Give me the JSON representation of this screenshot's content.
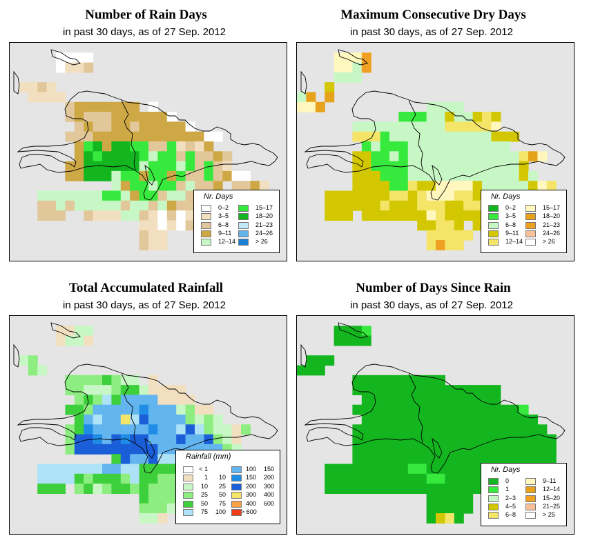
{
  "subtitle_parts": [
    "in past 30 days, as of",
    "27 Sep. 2012"
  ],
  "panels": [
    {
      "title": "Number of Rain Days",
      "legend": {
        "title": "Nr. Days",
        "items": [
          {
            "label": "0–2",
            "color": "#ffffff"
          },
          {
            "label": "3–5",
            "color": "#f2dfbf"
          },
          {
            "label": "6–8",
            "color": "#e2c79b"
          },
          {
            "label": "9–11",
            "color": "#cda845"
          },
          {
            "label": "12–14",
            "color": "#c8f7c6"
          },
          {
            "label": "15–17",
            "color": "#37e93d"
          },
          {
            "label": "18–20",
            "color": "#14b620"
          },
          {
            "label": "21–23",
            "color": "#c2e9f7"
          },
          {
            "label": "24–26",
            "color": "#62b3ea"
          },
          {
            "label": "> 26",
            "color": "#1a7fd2"
          }
        ]
      },
      "grid": [
        "..............................",
        ".....0000.....................",
        ".....0112.....................",
        "..............................",
        ".1121.........................",
        "..1111........................",
        "......23333333.0..............",
        "......232223333330............",
        ".......2322332333330..........",
        "......22233333333333300.......",
        ".......3LM3MMLL22L1213........",
        ".......3MLMMMML4LL2L2232......",
        "......33MMMMMM4LLL4L2L21.......",
        "......33MMM4LL3LL3L22L2300....",
        "...........43LL4LL24223.2231..",
        "...4444444LL43LL244222333222..",
        "...224244444244243222221..1...",
        "...222..2111442102011.........",
        "..............110102..........",
        "..............211.............",
        "..............211.............",
        ".............................."
      ]
    },
    {
      "title": "Maximum Consecutive Dry Days",
      "legend": {
        "title": "Nr. Days",
        "items": [
          {
            "label": "0–2",
            "color": "#14b620"
          },
          {
            "label": "3–5",
            "color": "#37e93d"
          },
          {
            "label": "6–8",
            "color": "#c8f7c6"
          },
          {
            "label": "9–11",
            "color": "#d2c700"
          },
          {
            "label": "12–14",
            "color": "#f4e569"
          },
          {
            "label": "15–17",
            "color": "#fff7bd"
          },
          {
            "label": "18–20",
            "color": "#e6a21a"
          },
          {
            "label": "21–23",
            "color": "#f0a022"
          },
          {
            "label": "24–26",
            "color": "#f7c09a"
          },
          {
            "label": "> 26",
            "color": "#ffffff"
          }
        ]
      },
      "grid": [
        "..............................",
        "....5557......................",
        "....5527......................",
        "....222.......................",
        "...3..........................",
        "26.6..........................",
        "556...........2222............",
        "...........11122322343........",
        "......2222222222444445........",
        "......444122222222222333......",
        ".......1211122222222222.......",
        "......331121222222222222465...",
        "......3311112222222222223.....",
        "......33311122222222222232....",
        "......3333114335555322222354..",
        "...33333334434555443343333.7..",
        "...3333334333444334443333377..",
        "...333.3333333543333334.......",
        ".............33443.3.........",
        "..............44444...........",
        "..............4744............",
        ".............................."
      ]
    },
    {
      "title": "Total Accumulated Rainfall",
      "legend": {
        "title": "Rainfall (mm)",
        "items": [
          {
            "lo": "< 1",
            "hi": "",
            "color": "#ffffff"
          },
          {
            "lo": "1",
            "hi": "10",
            "color": "#f2dfbf"
          },
          {
            "lo": "10",
            "hi": "25",
            "color": "#c8f7c6"
          },
          {
            "lo": "25",
            "hi": "50",
            "color": "#8ded80"
          },
          {
            "lo": "50",
            "hi": "75",
            "color": "#3ecf3d"
          },
          {
            "lo": "75",
            "hi": "100",
            "color": "#aee2f7"
          },
          {
            "lo": "100",
            "hi": "150",
            "color": "#63b5ef"
          },
          {
            "lo": "150",
            "hi": "200",
            "color": "#1f8de6"
          },
          {
            "lo": "200",
            "hi": "300",
            "color": "#1a5fd8"
          },
          {
            "lo": "300",
            "hi": "400",
            "color": "#f4e569"
          },
          {
            "lo": "400",
            "hi": "600",
            "color": "#f7a046"
          },
          {
            "lo": "> 600",
            "hi": "",
            "color": "#f03d19"
          }
        ]
      },
      "grid": [
        "..............................",
        ".....1122.....................",
        ".....1221.....................",
        "..............................",
        ".23...........................",
        "..32..........................",
        "......33334322.1..............",
        "......3322234421111...........",
        ".......3435466661111..........",
        "......4436666676662311........",
        ".......4656695866663232.......",
        "......34766666676658532213....",
        "......3887687886668668321....",
        "......3888888888666666632.....",
        "...........48668552443243.....",
        "...55555556655444433333232.1..",
        "...555543444354433344333333...",
        "...444.3423443433333.........",
        "..............4333332.........",
        "..............3332............",
        "..............221.............",
        ".............................."
      ]
    },
    {
      "title": "Number of Days Since Rain",
      "legend": {
        "title": "Nr. Days",
        "items": [
          {
            "label": "0",
            "color": "#14b620"
          },
          {
            "label": "1",
            "color": "#37e93d"
          },
          {
            "label": "2–3",
            "color": "#c8f7c6"
          },
          {
            "label": "4–5",
            "color": "#d2c700"
          },
          {
            "label": "6–8",
            "color": "#f4e569"
          },
          {
            "label": "9–11",
            "color": "#fff7bd"
          },
          {
            "label": "12–14",
            "color": "#e6a21a"
          },
          {
            "label": "15–20",
            "color": "#f0a022"
          },
          {
            "label": "21–25",
            "color": "#f7c09a"
          },
          {
            "label": "> 25",
            "color": "#ffffff"
          }
        ]
      },
      "grid": [
        "..............................",
        "....0001......................",
        "....0000......................",
        "..............................",
        ".000..........................",
        "000...........................",
        "......0000000000..............",
        "......0000000000000000........",
        ".......000000000000000........",
        "......0000000000000000001.....",
        ".......0000000000000000000....",
        "......000000000000000000000...",
        "......0000000000000000000000..",
        "......0000000000000000000000..",
        "......0000000000000000000000..",
        "...00000000011000000000000000.",
        "...0000000000011000000000000..",
        "...000000000000000000.........",
        "..............00000...........",
        "..............00000...........",
        "..............0340............",
        ".............................."
      ]
    }
  ]
}
